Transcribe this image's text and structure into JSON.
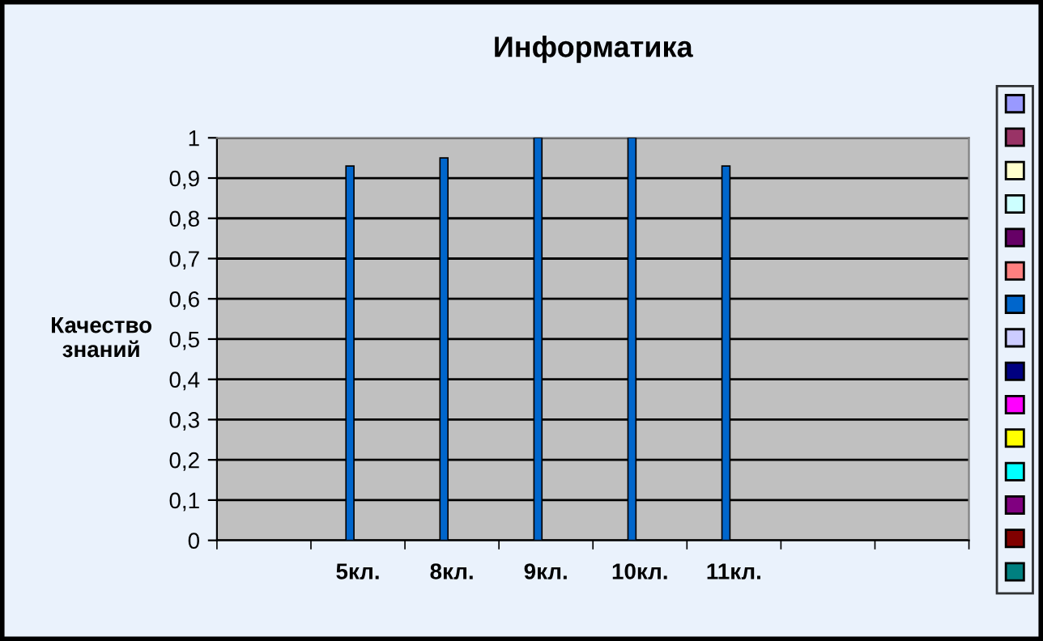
{
  "chart_data": {
    "type": "bar",
    "title": "Информатика",
    "ylabel": "Качество\nзнаний",
    "categories": [
      null,
      "5кл.",
      "8кл.",
      "9кл.",
      "10кл.",
      "11кл.",
      null,
      null
    ],
    "series": [
      {
        "color": "#9999ff",
        "values": [
          null,
          null,
          null,
          null,
          null,
          null,
          null,
          null
        ]
      },
      {
        "color": "#993366",
        "values": [
          null,
          null,
          null,
          null,
          null,
          null,
          null,
          null
        ]
      },
      {
        "color": "#ffffcc",
        "values": [
          null,
          null,
          null,
          null,
          null,
          null,
          null,
          null
        ]
      },
      {
        "color": "#ccffff",
        "values": [
          null,
          null,
          null,
          null,
          null,
          null,
          null,
          null
        ]
      },
      {
        "color": "#660066",
        "values": [
          null,
          null,
          null,
          null,
          null,
          null,
          null,
          null
        ]
      },
      {
        "color": "#ff8080",
        "values": [
          null,
          null,
          null,
          null,
          null,
          null,
          null,
          null
        ]
      },
      {
        "color": "#0066cc",
        "values": [
          null,
          0.93,
          0.95,
          1,
          1,
          0.93,
          null,
          null
        ]
      },
      {
        "color": "#ccccff",
        "values": [
          null,
          null,
          null,
          null,
          null,
          null,
          null,
          null
        ]
      },
      {
        "color": "#000080",
        "values": [
          null,
          null,
          null,
          null,
          null,
          null,
          null,
          null
        ]
      },
      {
        "color": "#ff00ff",
        "values": [
          null,
          null,
          null,
          null,
          null,
          null,
          null,
          null
        ]
      },
      {
        "color": "#ffff00",
        "values": [
          null,
          null,
          null,
          null,
          null,
          null,
          null,
          null
        ]
      },
      {
        "color": "#00ffff",
        "values": [
          null,
          null,
          null,
          null,
          null,
          null,
          null,
          null
        ]
      },
      {
        "color": "#800080",
        "values": [
          null,
          null,
          null,
          null,
          null,
          null,
          null,
          null
        ]
      },
      {
        "color": "#800000",
        "values": [
          null,
          null,
          null,
          null,
          null,
          null,
          null,
          null
        ]
      },
      {
        "color": "#008080",
        "values": [
          null,
          null,
          null,
          null,
          null,
          null,
          null,
          null
        ]
      }
    ],
    "ylim": [
      0,
      1
    ],
    "yticks": [
      0,
      {
        "value": 0.1,
        "label": "0,1"
      },
      {
        "value": 0.2,
        "label": "0,2"
      },
      {
        "value": 0.3,
        "label": "0,3"
      },
      {
        "value": 0.4,
        "label": "0,4"
      },
      {
        "value": 0.5,
        "label": "0,5"
      },
      {
        "value": 0.6,
        "label": "0,6"
      },
      {
        "value": 0.7,
        "label": "0,7"
      },
      {
        "value": 0.8,
        "label": "0,8"
      },
      {
        "value": 0.9,
        "label": "0,9"
      },
      1
    ],
    "grid": "y"
  }
}
